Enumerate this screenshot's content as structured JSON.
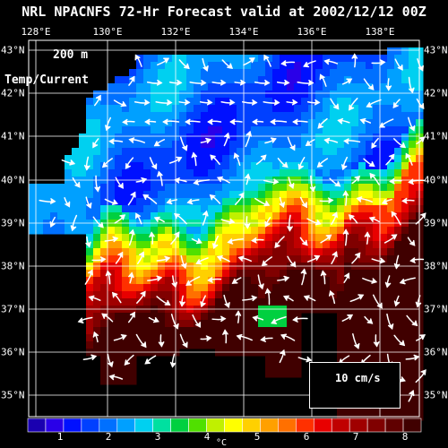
{
  "title": "NRL NPACNFS 72-Hr Forecast valid at 2002/12/12 00Z",
  "depth_label": "200 m",
  "variable_label": "Temp/Current",
  "lon_labels": [
    "128°E",
    "130°E",
    "132°E",
    "134°E",
    "136°E",
    "138°E"
  ],
  "lon_values": [
    128,
    130,
    132,
    134,
    136,
    138
  ],
  "lat_labels": [
    "43°N",
    "42°N",
    "41°N",
    "40°N",
    "39°N",
    "38°N",
    "37°N",
    "36°N",
    "35°N"
  ],
  "lat_values": [
    43,
    42,
    41,
    40,
    39,
    38,
    37,
    36,
    35
  ],
  "colorbar": {
    "ticks": [
      "1",
      "2",
      "3",
      "4",
      "5",
      "6",
      "7",
      "8"
    ],
    "unit": "°C",
    "colors": [
      "#1a00b0",
      "#2a00e8",
      "#0010ff",
      "#0040ff",
      "#0070ff",
      "#00a0ff",
      "#00d0f0",
      "#00e0a0",
      "#00d040",
      "#50e000",
      "#c0f000",
      "#ffff00",
      "#ffd000",
      "#ffa000",
      "#ff7000",
      "#ff3000",
      "#e80000",
      "#c00000",
      "#a00000",
      "#800000",
      "#600000",
      "#400000"
    ]
  },
  "reference_vector": {
    "label": "10 cm/s"
  },
  "colors": {
    "background": "#000000",
    "land": "#000000",
    "foreground": "#ffffff"
  }
}
